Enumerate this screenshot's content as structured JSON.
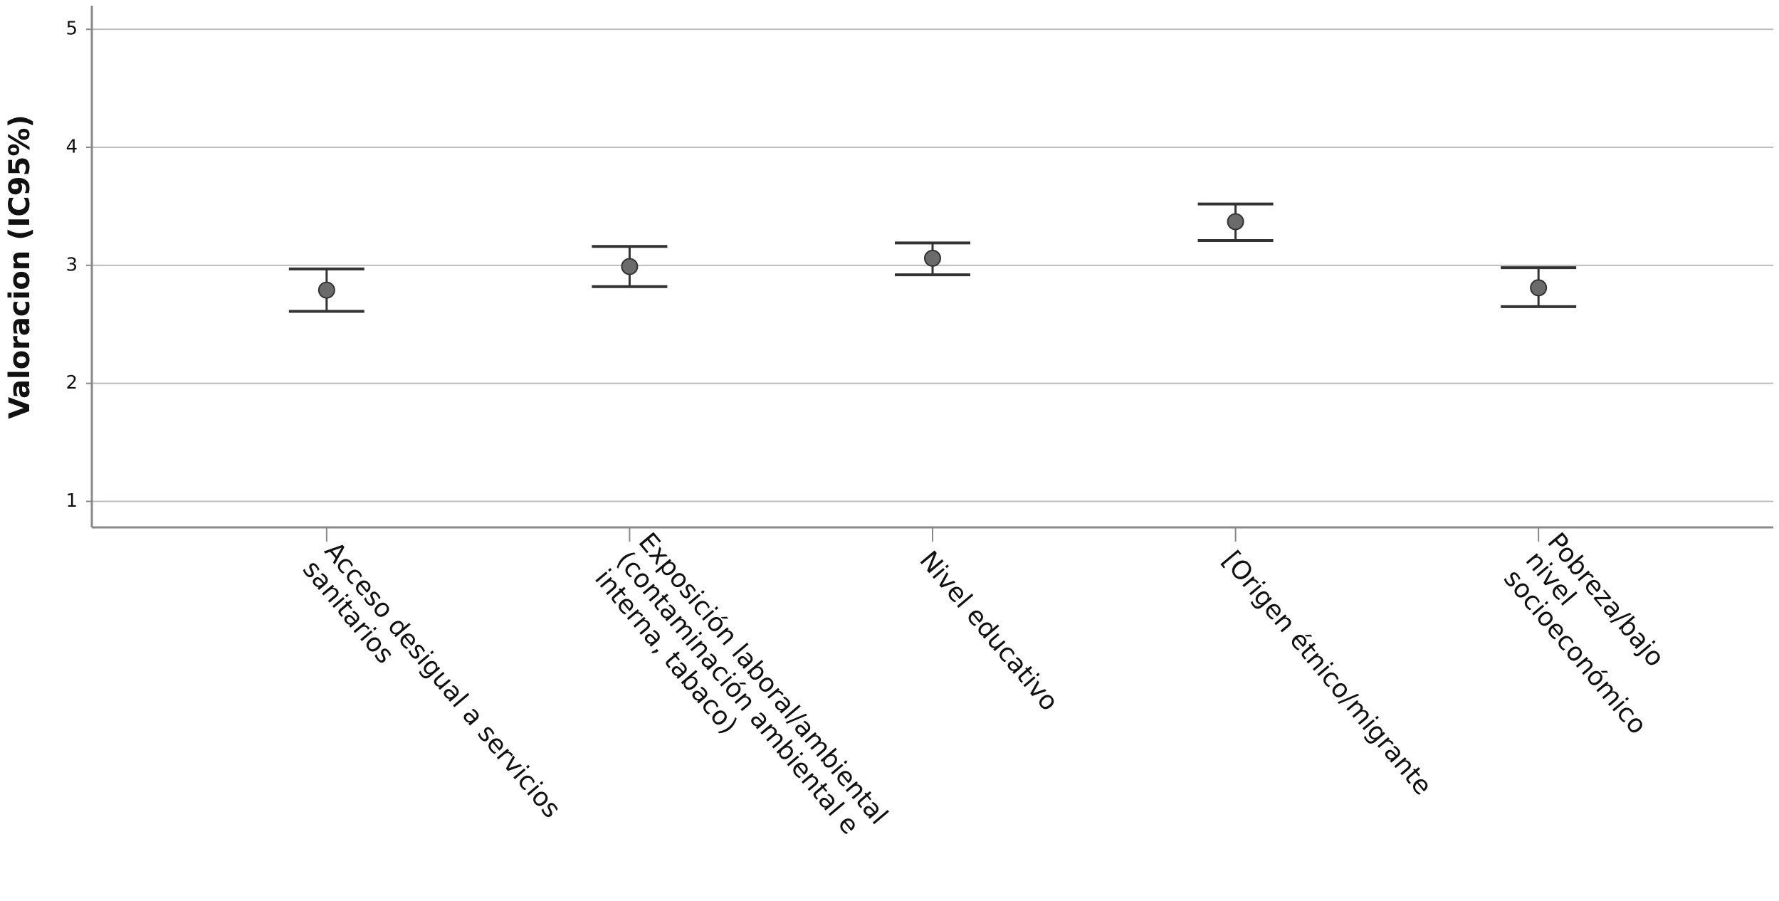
{
  "chart_data": {
    "type": "errorbar",
    "y_label": "Valoracion (IC95%)",
    "categories": [
      [
        "Acceso desigual a servicios",
        "sanitarios"
      ],
      [
        "Exposición laboral/ambiental",
        "(contaminación ambiental e",
        "interna, tabaco)"
      ],
      [
        "Nivel educativo"
      ],
      [
        "[Origen étnico/migrante"
      ],
      [
        "Pobreza/bajo",
        "nivel",
        "socioeconómico"
      ]
    ],
    "values": [
      2.79,
      2.99,
      3.06,
      3.37,
      2.81
    ],
    "lower": [
      2.61,
      2.82,
      2.92,
      3.21,
      2.65
    ],
    "upper": [
      2.97,
      3.16,
      3.19,
      3.52,
      2.98
    ],
    "color": "#6b6b6b",
    "ylim": [
      0.78,
      5.2
    ],
    "yticks": [
      1,
      2,
      3,
      4,
      5
    ],
    "grid": true
  }
}
